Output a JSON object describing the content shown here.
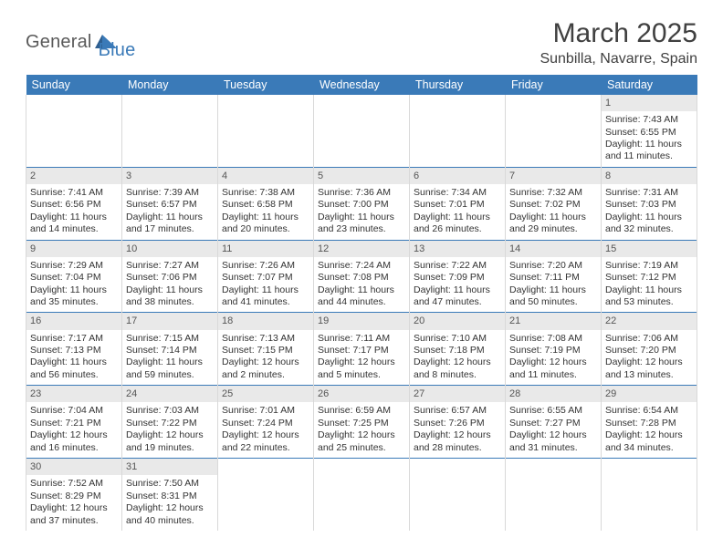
{
  "logo": {
    "text1": "General",
    "text2": "Blue"
  },
  "title": {
    "month": "March 2025",
    "location": "Sunbilla, Navarre, Spain"
  },
  "colors": {
    "header_bg": "#3a7ab8",
    "header_text": "#ffffff",
    "row_sep": "#3a7ab8",
    "col_sep": "#d9d9d9",
    "daynum_bg": "#e9e9e9",
    "body_text": "#333333",
    "logo_gray": "#5a5a5a",
    "logo_blue": "#3a7ab8"
  },
  "weekdays": [
    "Sunday",
    "Monday",
    "Tuesday",
    "Wednesday",
    "Thursday",
    "Friday",
    "Saturday"
  ],
  "first_day_of_week_index": 6,
  "days": {
    "1": {
      "sunrise": "7:43 AM",
      "sunset": "6:55 PM",
      "daylight": "11 hours and 11 minutes."
    },
    "2": {
      "sunrise": "7:41 AM",
      "sunset": "6:56 PM",
      "daylight": "11 hours and 14 minutes."
    },
    "3": {
      "sunrise": "7:39 AM",
      "sunset": "6:57 PM",
      "daylight": "11 hours and 17 minutes."
    },
    "4": {
      "sunrise": "7:38 AM",
      "sunset": "6:58 PM",
      "daylight": "11 hours and 20 minutes."
    },
    "5": {
      "sunrise": "7:36 AM",
      "sunset": "7:00 PM",
      "daylight": "11 hours and 23 minutes."
    },
    "6": {
      "sunrise": "7:34 AM",
      "sunset": "7:01 PM",
      "daylight": "11 hours and 26 minutes."
    },
    "7": {
      "sunrise": "7:32 AM",
      "sunset": "7:02 PM",
      "daylight": "11 hours and 29 minutes."
    },
    "8": {
      "sunrise": "7:31 AM",
      "sunset": "7:03 PM",
      "daylight": "11 hours and 32 minutes."
    },
    "9": {
      "sunrise": "7:29 AM",
      "sunset": "7:04 PM",
      "daylight": "11 hours and 35 minutes."
    },
    "10": {
      "sunrise": "7:27 AM",
      "sunset": "7:06 PM",
      "daylight": "11 hours and 38 minutes."
    },
    "11": {
      "sunrise": "7:26 AM",
      "sunset": "7:07 PM",
      "daylight": "11 hours and 41 minutes."
    },
    "12": {
      "sunrise": "7:24 AM",
      "sunset": "7:08 PM",
      "daylight": "11 hours and 44 minutes."
    },
    "13": {
      "sunrise": "7:22 AM",
      "sunset": "7:09 PM",
      "daylight": "11 hours and 47 minutes."
    },
    "14": {
      "sunrise": "7:20 AM",
      "sunset": "7:11 PM",
      "daylight": "11 hours and 50 minutes."
    },
    "15": {
      "sunrise": "7:19 AM",
      "sunset": "7:12 PM",
      "daylight": "11 hours and 53 minutes."
    },
    "16": {
      "sunrise": "7:17 AM",
      "sunset": "7:13 PM",
      "daylight": "11 hours and 56 minutes."
    },
    "17": {
      "sunrise": "7:15 AM",
      "sunset": "7:14 PM",
      "daylight": "11 hours and 59 minutes."
    },
    "18": {
      "sunrise": "7:13 AM",
      "sunset": "7:15 PM",
      "daylight": "12 hours and 2 minutes."
    },
    "19": {
      "sunrise": "7:11 AM",
      "sunset": "7:17 PM",
      "daylight": "12 hours and 5 minutes."
    },
    "20": {
      "sunrise": "7:10 AM",
      "sunset": "7:18 PM",
      "daylight": "12 hours and 8 minutes."
    },
    "21": {
      "sunrise": "7:08 AM",
      "sunset": "7:19 PM",
      "daylight": "12 hours and 11 minutes."
    },
    "22": {
      "sunrise": "7:06 AM",
      "sunset": "7:20 PM",
      "daylight": "12 hours and 13 minutes."
    },
    "23": {
      "sunrise": "7:04 AM",
      "sunset": "7:21 PM",
      "daylight": "12 hours and 16 minutes."
    },
    "24": {
      "sunrise": "7:03 AM",
      "sunset": "7:22 PM",
      "daylight": "12 hours and 19 minutes."
    },
    "25": {
      "sunrise": "7:01 AM",
      "sunset": "7:24 PM",
      "daylight": "12 hours and 22 minutes."
    },
    "26": {
      "sunrise": "6:59 AM",
      "sunset": "7:25 PM",
      "daylight": "12 hours and 25 minutes."
    },
    "27": {
      "sunrise": "6:57 AM",
      "sunset": "7:26 PM",
      "daylight": "12 hours and 28 minutes."
    },
    "28": {
      "sunrise": "6:55 AM",
      "sunset": "7:27 PM",
      "daylight": "12 hours and 31 minutes."
    },
    "29": {
      "sunrise": "6:54 AM",
      "sunset": "7:28 PM",
      "daylight": "12 hours and 34 minutes."
    },
    "30": {
      "sunrise": "7:52 AM",
      "sunset": "8:29 PM",
      "daylight": "12 hours and 37 minutes."
    },
    "31": {
      "sunrise": "7:50 AM",
      "sunset": "8:31 PM",
      "daylight": "12 hours and 40 minutes."
    }
  },
  "labels": {
    "sunrise": "Sunrise:",
    "sunset": "Sunset:",
    "daylight": "Daylight:"
  },
  "layout": {
    "total_days": 31,
    "columns": 7
  }
}
